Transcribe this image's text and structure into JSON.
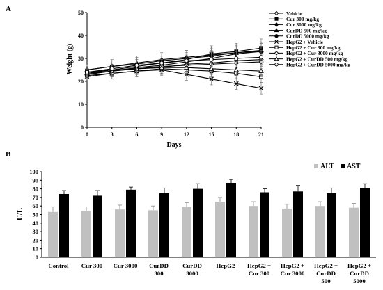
{
  "chart_data": [
    {
      "panel_label": "A",
      "type": "line",
      "title": "",
      "xlabel": "Days",
      "ylabel": "Weight (g)",
      "x": [
        0,
        3,
        6,
        9,
        12,
        15,
        18,
        21
      ],
      "xticks": [
        "0",
        "3",
        "6",
        "9",
        "12",
        "15",
        "18",
        "21"
      ],
      "ylim": [
        0,
        50
      ],
      "yticks": [
        "0",
        "10",
        "20",
        "30",
        "40",
        "50"
      ],
      "grid": false,
      "legend_position": "top-right",
      "series": [
        {
          "name": "Vehicle",
          "marker": "diamond-open",
          "values": [
            24,
            25,
            25.5,
            26,
            27.5,
            28,
            29,
            29.5
          ],
          "err": [
            2.5,
            2.5,
            2.5,
            3,
            3,
            3,
            3,
            3
          ]
        },
        {
          "name": "Cur 300 mg/kg",
          "marker": "square-filled",
          "values": [
            23.5,
            25,
            26.5,
            28,
            29.5,
            32,
            33,
            34.5
          ],
          "err": [
            2.5,
            3,
            3,
            3,
            3,
            3.5,
            3.5,
            4
          ]
        },
        {
          "name": "Cur 3000 mg/kg",
          "marker": "diamond-filled",
          "values": [
            23,
            24.5,
            26,
            27,
            28.5,
            30,
            32,
            33
          ],
          "err": [
            2.5,
            2.5,
            3,
            3,
            3,
            3.5,
            3.5,
            3.5
          ]
        },
        {
          "name": "CurDD 500 mg/kg",
          "marker": "triangle-filled",
          "values": [
            25,
            26.5,
            28,
            29.5,
            30.5,
            31.5,
            32.5,
            33.5
          ],
          "err": [
            2.5,
            2.5,
            3,
            3,
            3,
            3.5,
            3.5,
            3.5
          ]
        },
        {
          "name": "CurDD 5000 mg/kg",
          "marker": "circle-filled",
          "values": [
            25,
            26.5,
            27.5,
            29,
            30,
            31,
            32.5,
            33
          ],
          "err": [
            2.5,
            3,
            3,
            3,
            3.5,
            3.5,
            3.5,
            3.5
          ]
        },
        {
          "name": "HepG2 + Vehicle",
          "marker": "x",
          "values": [
            22,
            23.5,
            24.5,
            25,
            23,
            21,
            19,
            17
          ],
          "err": [
            2,
            2.5,
            2.5,
            2.5,
            2.5,
            2.5,
            2.5,
            2.5
          ]
        },
        {
          "name": "HepG2 + Cur 300 mg/kg",
          "marker": "square-open",
          "values": [
            22.5,
            23.5,
            24.5,
            25.5,
            25,
            24.5,
            23.5,
            22
          ],
          "err": [
            2,
            2.5,
            2.5,
            2.5,
            2.5,
            2.5,
            2.5,
            2.5
          ]
        },
        {
          "name": "HepG2 + Cur 3000 mg/kg",
          "marker": "diamond-open",
          "values": [
            23,
            24.5,
            25.5,
            26.5,
            27,
            27.5,
            28,
            28.5
          ],
          "err": [
            2,
            2.5,
            2.5,
            3,
            3,
            3,
            3,
            3
          ]
        },
        {
          "name": "HepG2 + CurDD 500 mg/kg",
          "marker": "triangle-open",
          "values": [
            23.5,
            24.5,
            25.5,
            26,
            26,
            25.5,
            25,
            24.5
          ],
          "err": [
            2,
            2.5,
            2.5,
            2.5,
            2.5,
            2.5,
            2.5,
            2.5
          ]
        },
        {
          "name": "HepG2 + CurDD 5000 mg/kg",
          "marker": "circle-open",
          "values": [
            24,
            25.5,
            27,
            28,
            29,
            29.5,
            30,
            30.5
          ],
          "err": [
            2,
            2.5,
            2.5,
            3,
            3,
            3,
            3,
            3
          ]
        }
      ]
    },
    {
      "panel_label": "B",
      "type": "bar",
      "title": "",
      "xlabel": "",
      "ylabel": "U/L",
      "ylim": [
        0,
        100
      ],
      "yticks": [
        "0",
        "10",
        "20",
        "30",
        "40",
        "50",
        "60",
        "70",
        "80",
        "90",
        "100"
      ],
      "grid": false,
      "legend_position": "top-right",
      "categories": [
        [
          "Control"
        ],
        [
          "Cur 300"
        ],
        [
          "Cur 3000"
        ],
        [
          "CurDD",
          "300"
        ],
        [
          "CurDD",
          "3000"
        ],
        [
          "HepG2"
        ],
        [
          "HepG2 +",
          "Cur 300"
        ],
        [
          "HepG2 +",
          "Cur 3000"
        ],
        [
          "HepG2 +",
          "CurDD",
          "500"
        ],
        [
          "HepG2 +",
          "CurDD",
          "5000"
        ]
      ],
      "series": [
        {
          "name": "ALT",
          "color": "#c0c0c0",
          "values": [
            53,
            54,
            56,
            55,
            59,
            65,
            60,
            57,
            60,
            58
          ],
          "err": [
            6,
            5,
            5,
            5,
            5,
            5,
            5,
            5,
            5,
            5
          ]
        },
        {
          "name": "AST",
          "color": "#000000",
          "values": [
            74,
            72,
            79,
            75,
            80,
            87,
            76,
            77,
            75,
            81
          ],
          "err": [
            4,
            6,
            3,
            6,
            6,
            4,
            4,
            7,
            6,
            5
          ]
        }
      ]
    }
  ]
}
